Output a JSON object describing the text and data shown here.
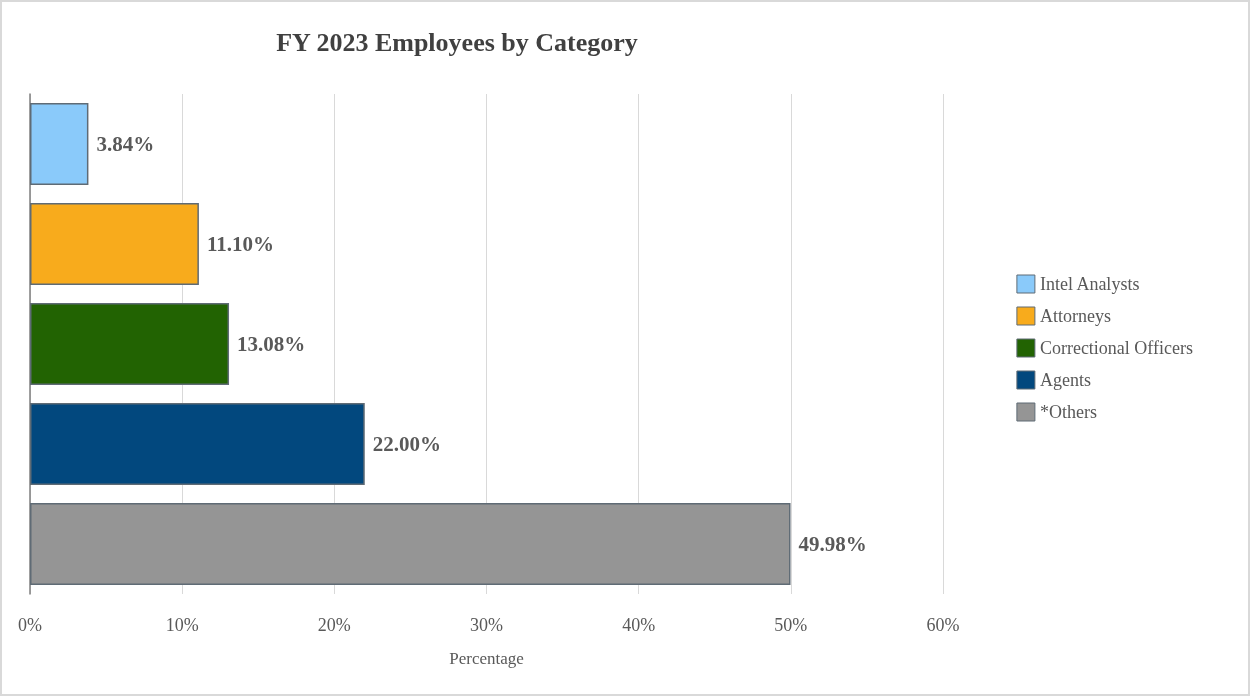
{
  "chart_data": {
    "type": "bar",
    "orientation": "horizontal",
    "title": "FY 2023 Employees by Category",
    "xlabel": "Percentage",
    "categories": [
      null,
      null,
      null,
      null,
      null
    ],
    "series": [
      {
        "name": "Intel Analysts",
        "color": "#8acafa",
        "values": [
          3.84,
          null,
          null,
          null,
          null
        ],
        "value_labels": [
          "3.84%",
          null,
          null,
          null,
          null
        ]
      },
      {
        "name": "Attorneys",
        "color": "#f8ab1c",
        "values": [
          null,
          11.1,
          null,
          null,
          null
        ],
        "value_labels": [
          null,
          "11.10%",
          null,
          null,
          null
        ]
      },
      {
        "name": "Correctional Officers",
        "color": "#226302",
        "values": [
          null,
          null,
          13.08,
          null,
          null
        ],
        "value_labels": [
          null,
          null,
          "13.08%",
          null,
          null
        ]
      },
      {
        "name": "Agents",
        "color": "#02487e",
        "values": [
          null,
          null,
          null,
          22.0,
          null
        ],
        "value_labels": [
          null,
          null,
          null,
          "22.00%",
          null
        ]
      },
      {
        "name": "*Others",
        "color": "#959595",
        "values": [
          null,
          null,
          null,
          null,
          49.98
        ],
        "value_labels": [
          null,
          null,
          null,
          null,
          "49.98%"
        ]
      }
    ],
    "xlim": [
      0,
      60
    ],
    "xticks": [
      {
        "value": 0,
        "label": "0%"
      },
      {
        "value": 10,
        "label": "10%"
      },
      {
        "value": 20,
        "label": "20%"
      },
      {
        "value": 30,
        "label": "30%"
      },
      {
        "value": 40,
        "label": "40%"
      },
      {
        "value": 50,
        "label": "50%"
      },
      {
        "value": 60,
        "label": "60%"
      }
    ],
    "grid": "x",
    "legend": "right"
  }
}
